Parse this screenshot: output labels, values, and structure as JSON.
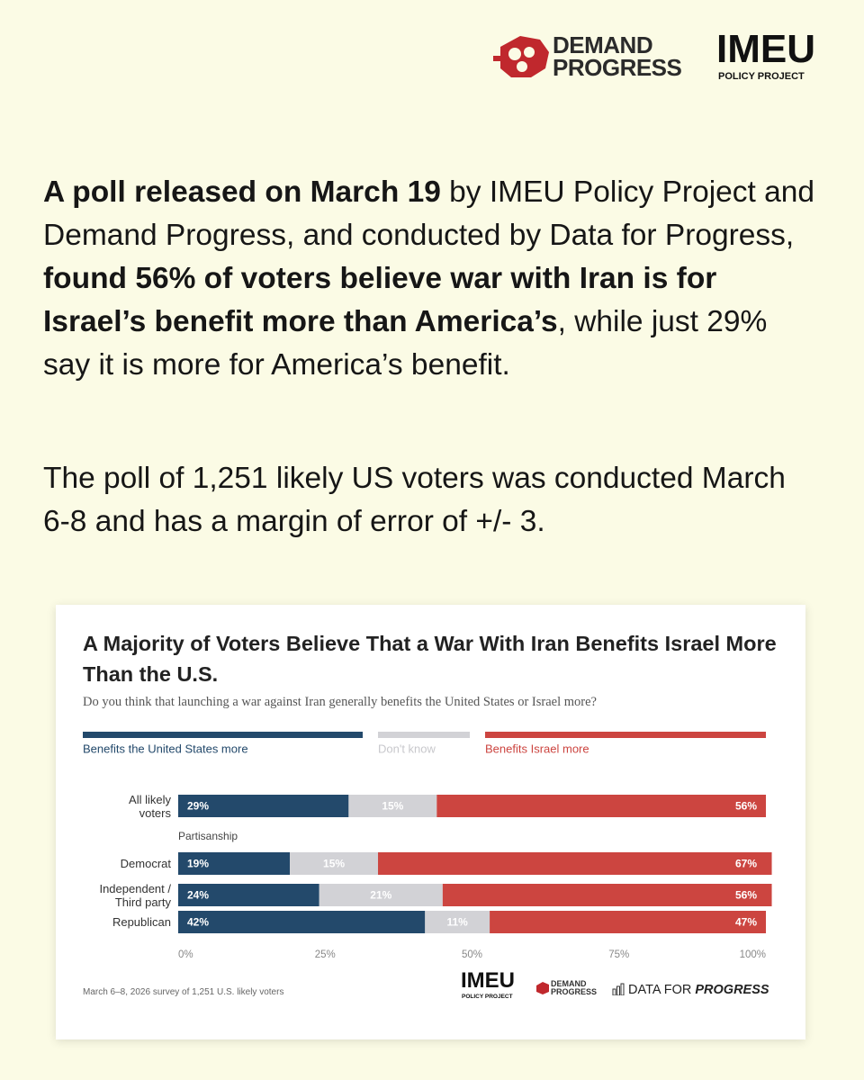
{
  "header": {
    "demand_progress": [
      "DEMAND",
      "PROGRESS"
    ],
    "imeu": "IMEU",
    "imeu_sub": "POLICY PROJECT"
  },
  "paragraphs": [
    {
      "runs": [
        {
          "text": "A poll released on March 19",
          "bold": true
        },
        {
          "text": " by IMEU Policy Project and Demand Progress, and conducted by Data for Progress, ",
          "bold": false
        },
        {
          "text": "found 56% of voters believe war with Iran is for Israel’s benefit more than America’s",
          "bold": true
        },
        {
          "text": ", while just 29% say it is more for America’s benefit.",
          "bold": false
        }
      ]
    },
    {
      "runs": [
        {
          "text": "The poll of 1,251 likely US voters was conducted March 6-8 and has a margin of error of +/- 3.",
          "bold": false
        }
      ]
    }
  ],
  "chart_data": {
    "type": "stacked_barh",
    "title": "A Majority of Voters Believe That a War With Iran Benefits Israel More Than the U.S.",
    "subtitle": "Do you think that launching a war against Iran generally benefits the United States or Israel more?",
    "categories": [
      "All likely\nvoters",
      "Democrat",
      "Independent /\nThird party",
      "Republican"
    ],
    "group_label": "Partisanship",
    "series": [
      {
        "name": "Benefits the United States more",
        "color": "#23496b",
        "values": [
          29,
          19,
          24,
          42
        ],
        "value_labels": [
          "29%",
          "19%",
          "24%",
          "42%"
        ]
      },
      {
        "name": "Don't know",
        "color": "#d2d2d6",
        "values": [
          15,
          15,
          21,
          11
        ],
        "value_labels": [
          "15%",
          "15%",
          "21%",
          "11%"
        ]
      },
      {
        "name": "Benefits Israel more",
        "color": "#cc4540",
        "values": [
          56,
          67,
          56,
          47
        ],
        "value_labels": [
          "56%",
          "67%",
          "56%",
          "47%"
        ]
      }
    ],
    "xlim": [
      0,
      100
    ],
    "xticks": [
      {
        "value": 0,
        "label": "0%"
      },
      {
        "value": 25,
        "label": "25%"
      },
      {
        "value": 50,
        "label": "50%"
      },
      {
        "value": 75,
        "label": "75%"
      },
      {
        "value": 100,
        "label": "100%"
      }
    ],
    "note": "March 6–8, 2026 survey of 1,251 U.S. likely voters",
    "footer_logos": {
      "imeu": "IMEU",
      "imeu_sub": "POLICY PROJECT",
      "demand_progress": [
        "DEMAND",
        "PROGRESS"
      ],
      "dfp": [
        "DATA FOR ",
        "PROGRESS"
      ]
    }
  }
}
